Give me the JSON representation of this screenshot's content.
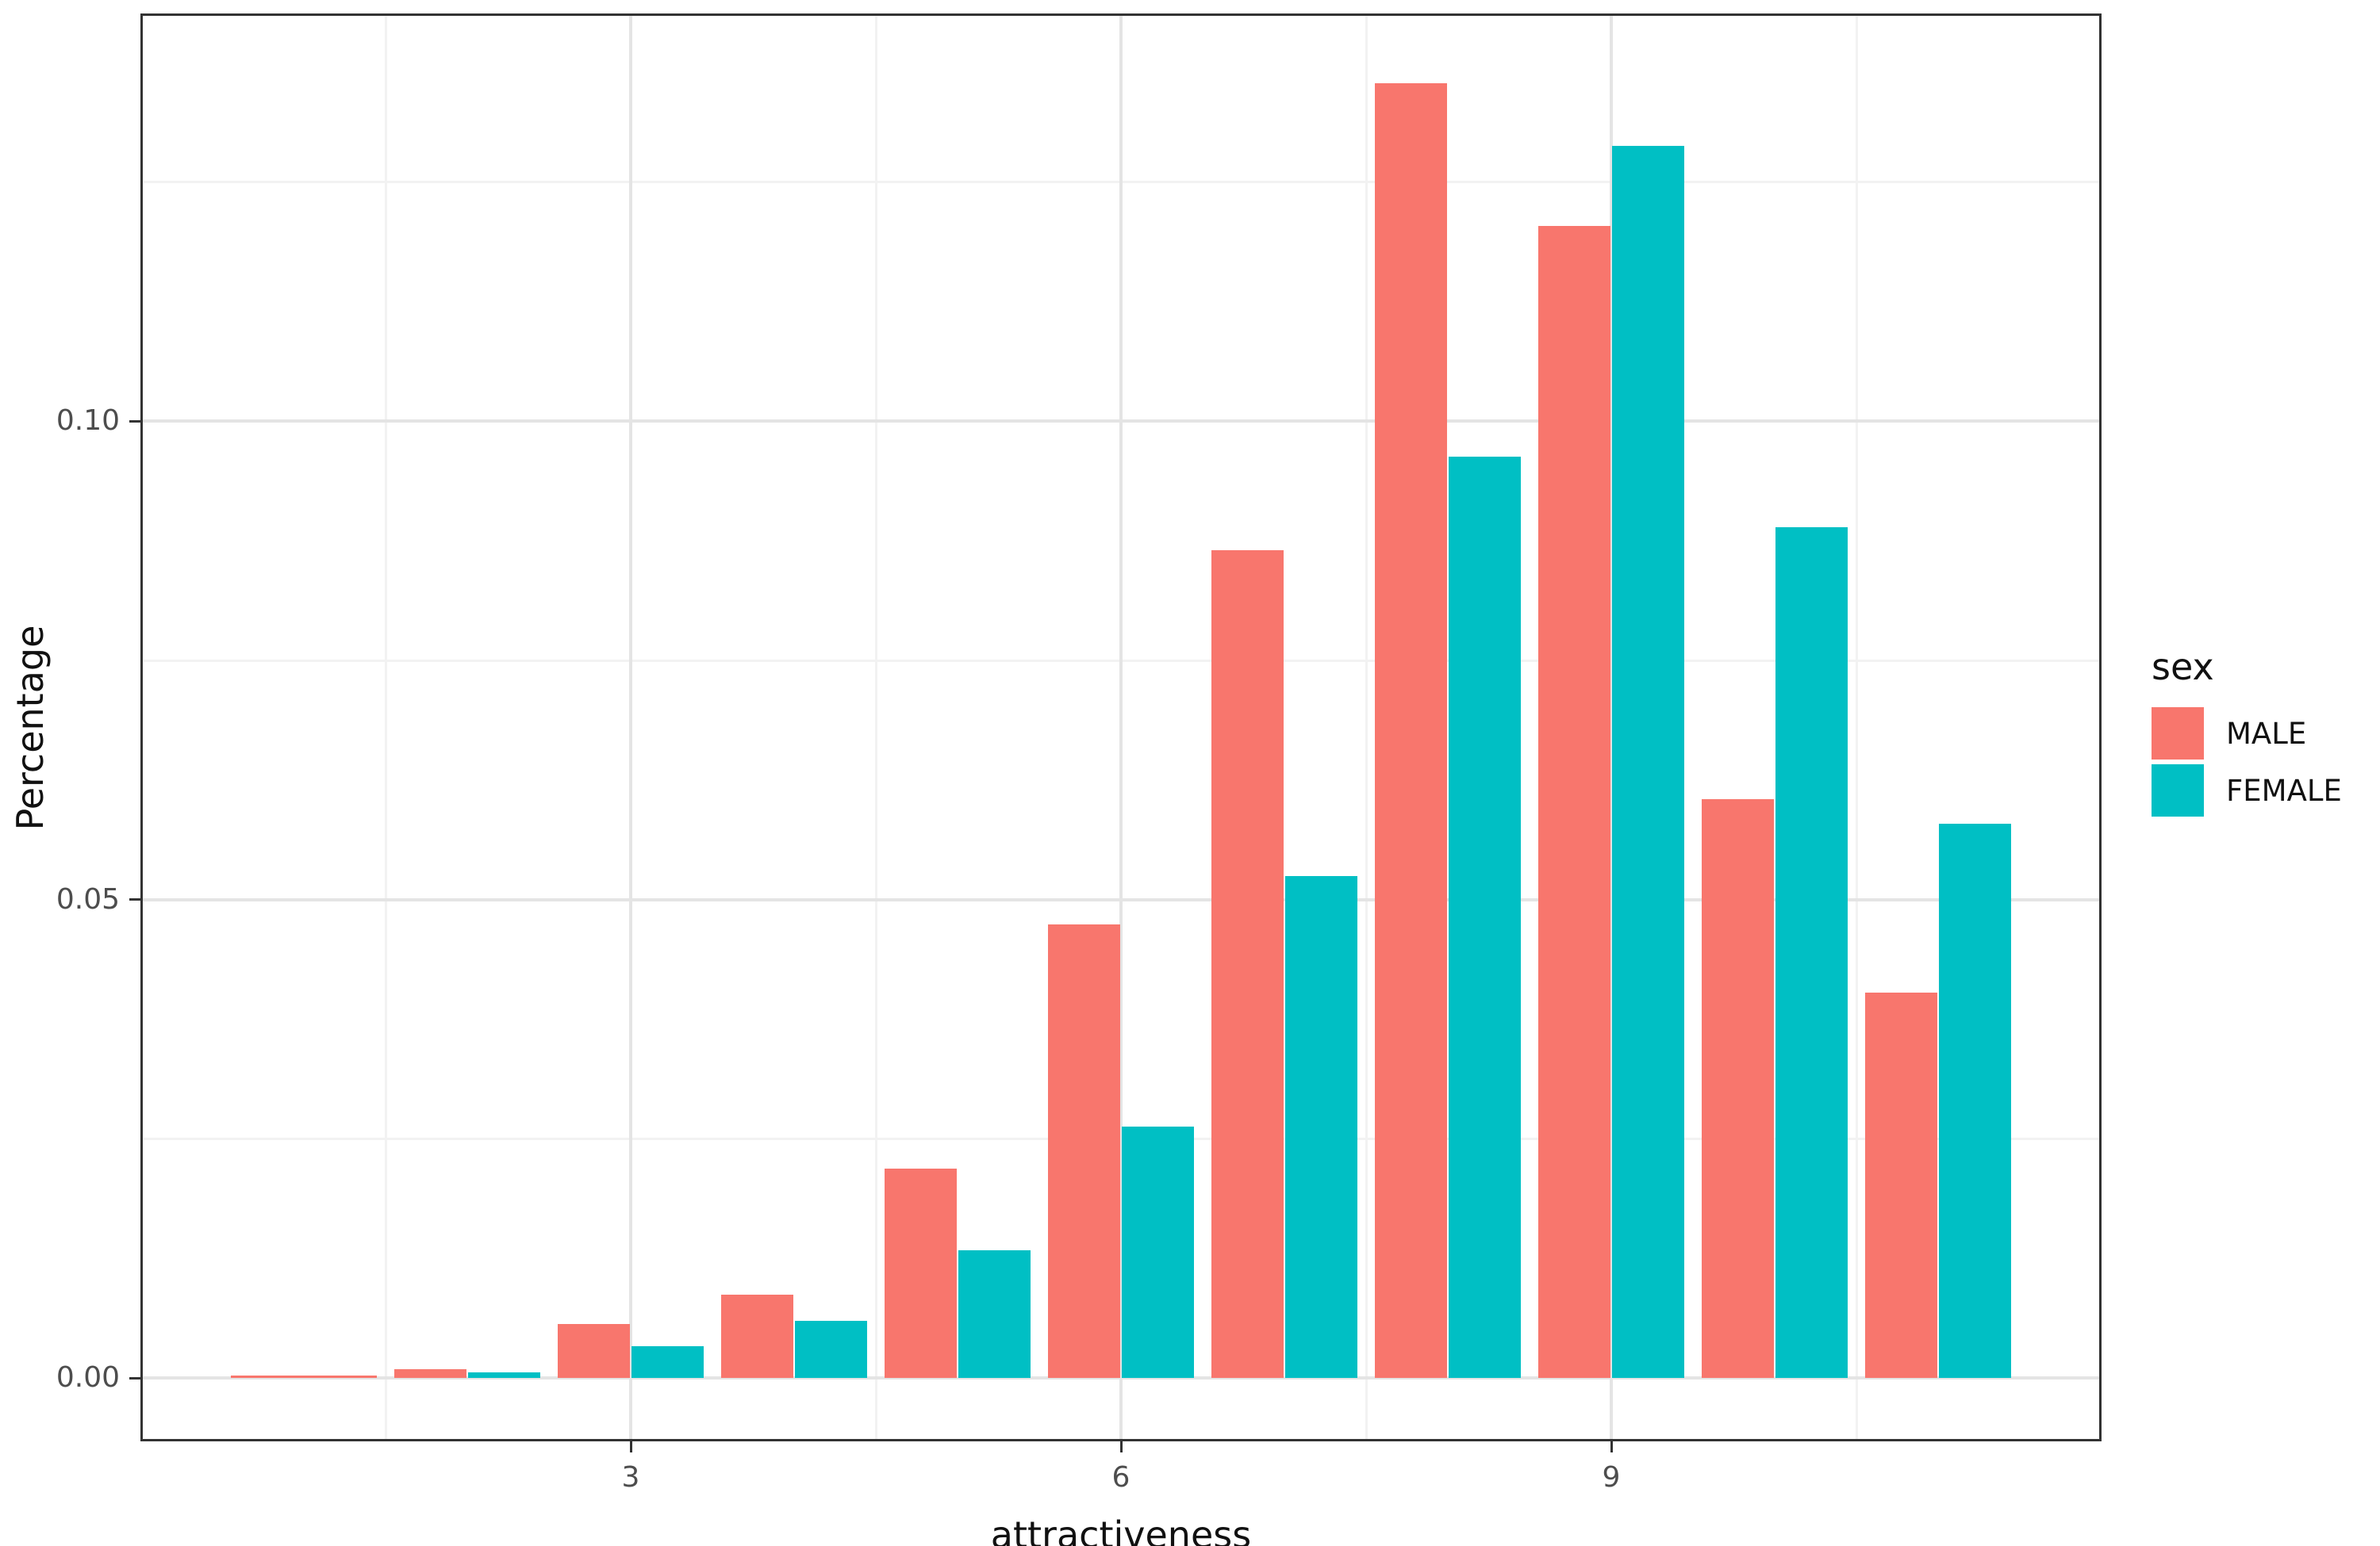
{
  "chart_data": {
    "type": "bar",
    "subtype": "grouped-dodged-histogram",
    "title": "",
    "xlabel": "attractiveness",
    "ylabel": "Percentage",
    "categories": [
      1,
      2,
      3,
      4,
      5,
      6,
      7,
      8,
      9,
      10,
      11
    ],
    "series": [
      {
        "name": "MALE",
        "color": "#F8766D",
        "values": [
          0.0003,
          0.0009,
          0.0057,
          0.0087,
          0.0219,
          0.0474,
          0.0865,
          0.1353,
          0.1204,
          0.0605,
          0.0403
        ]
      },
      {
        "name": "FEMALE",
        "color": "#00BFC4",
        "values": [
          null,
          0.0006,
          0.0033,
          0.006,
          0.0134,
          0.0263,
          0.0525,
          0.0963,
          0.1288,
          0.0889,
          0.0579
        ]
      }
    ],
    "x_axis": {
      "range": [
        0,
        12
      ],
      "ticks": [
        3,
        6,
        9
      ],
      "tick_labels": [
        "3",
        "6",
        "9"
      ],
      "minor_breaks": [
        1.5,
        4.5,
        7.5,
        10.5
      ]
    },
    "y_axis": {
      "range": [
        -0.0066,
        0.1426
      ],
      "ticks": [
        0.0,
        0.05,
        0.1
      ],
      "tick_labels": [
        "0.00",
        "0.05",
        "0.10"
      ],
      "minor_breaks": [
        0.025,
        0.075,
        0.125
      ]
    },
    "bar_group_width": 0.9,
    "grid": true,
    "legend": {
      "title": "sex",
      "position": "right",
      "entries": [
        {
          "label": "MALE",
          "color": "#F8766D"
        },
        {
          "label": "FEMALE",
          "color": "#00BFC4"
        }
      ]
    },
    "colors": {
      "panel_border": "#333333",
      "major_grid": "#e4e4e4",
      "minor_grid": "#f2f2f2",
      "tick_text": "#4d4d4d",
      "title_text": "#111111",
      "background": "#ffffff"
    }
  }
}
